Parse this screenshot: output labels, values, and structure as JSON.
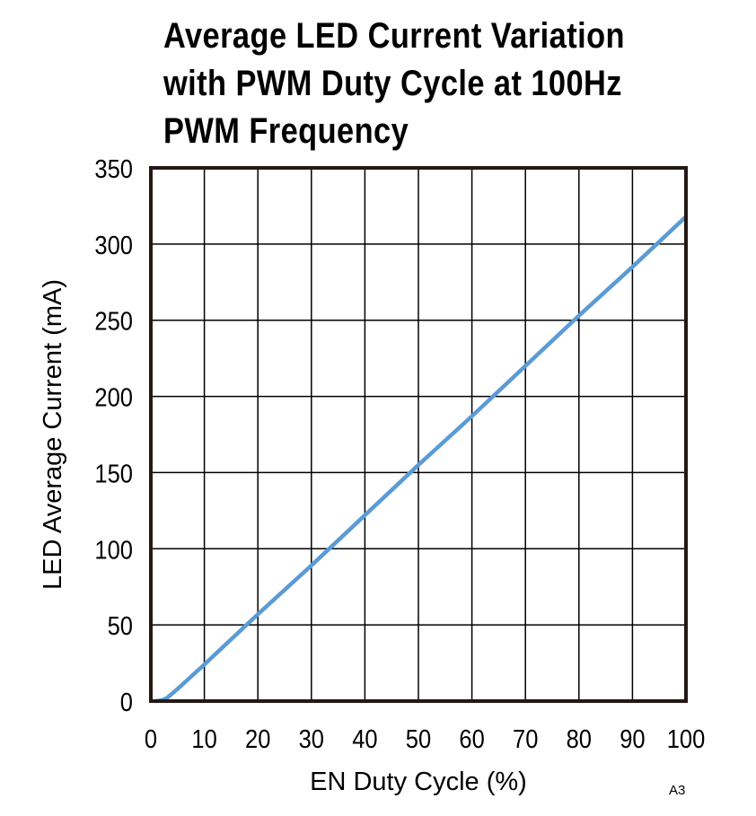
{
  "chart_data": {
    "type": "line",
    "title_lines": [
      "Average LED Current Variation",
      "with PWM Duty Cycle at 100Hz",
      "PWM Frequency"
    ],
    "xlabel": "EN Duty Cycle (%)",
    "ylabel": "LED Average  Current (mA)",
    "xlim": [
      0,
      100
    ],
    "ylim": [
      0,
      350
    ],
    "xticks": [
      0,
      10,
      20,
      30,
      40,
      50,
      60,
      70,
      80,
      90,
      100
    ],
    "yticks": [
      0,
      50,
      100,
      150,
      200,
      250,
      300,
      350
    ],
    "grid": true,
    "series": [
      {
        "name": "LED Average Current",
        "color": "#5b9bd5",
        "x": [
          1,
          2,
          3,
          5,
          10,
          20,
          30,
          40,
          50,
          60,
          70,
          80,
          90,
          100
        ],
        "y": [
          0,
          0.5,
          2,
          8,
          24,
          57,
          89,
          122,
          155,
          187,
          220,
          253,
          285,
          318
        ]
      }
    ],
    "annotation": "A3"
  }
}
